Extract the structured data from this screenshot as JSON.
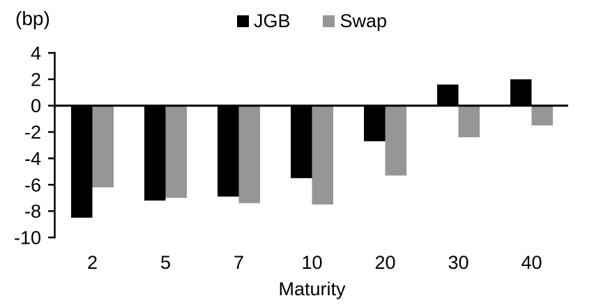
{
  "chart_data": {
    "type": "bar",
    "unit_label": "(bp)",
    "xlabel": "Maturity",
    "categories": [
      "2",
      "5",
      "7",
      "10",
      "20",
      "30",
      "40"
    ],
    "series": [
      {
        "name": "JGB",
        "color": "#000000",
        "values": [
          -8.5,
          -7.2,
          -6.9,
          -5.5,
          -2.7,
          1.6,
          2.0
        ]
      },
      {
        "name": "Swap",
        "color": "#969696",
        "values": [
          -6.2,
          -7.0,
          -7.4,
          -7.5,
          -5.3,
          -2.4,
          -1.5
        ]
      }
    ],
    "yticks": [
      4,
      2,
      0,
      -2,
      -4,
      -6,
      -8,
      -10
    ],
    "ylim": [
      -10,
      4
    ],
    "axis_color": "#000000",
    "legend_position": "top-center",
    "grid": false
  }
}
